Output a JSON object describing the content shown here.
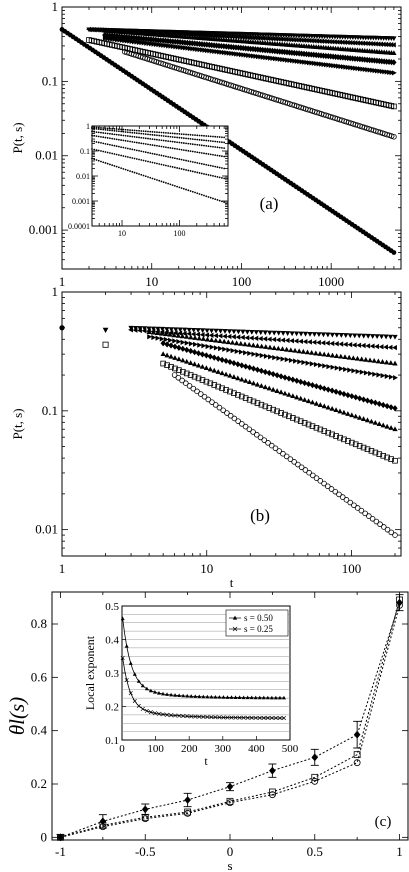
{
  "chart_data": [
    {
      "panel_label": "(a)",
      "type": "scatter",
      "xscale": "log",
      "yscale": "log",
      "xlabel": "t",
      "ylabel": "P(t, s)",
      "xlim": [
        1,
        6000
      ],
      "ylim": [
        0.0003,
        1
      ],
      "xticks": [
        {
          "v": 1,
          "label": "1"
        },
        {
          "v": 10,
          "label": "10"
        },
        {
          "v": 100,
          "label": "100"
        },
        {
          "v": 1000,
          "label": "1000"
        }
      ],
      "yticks": [
        {
          "v": 1,
          "label": "1"
        },
        {
          "v": 0.1,
          "label": "0.1"
        },
        {
          "v": 0.01,
          "label": "0.01"
        },
        {
          "v": 0.001,
          "label": "0.001"
        }
      ],
      "series": [
        {
          "marker": "triangle-down",
          "start": [
            2,
            0.5
          ],
          "end": [
            5000,
            0.38
          ]
        },
        {
          "marker": "triangle-left",
          "start": [
            2,
            0.5
          ],
          "end": [
            5000,
            0.31
          ]
        },
        {
          "marker": "triangle-up",
          "start": [
            3,
            0.48
          ],
          "end": [
            5000,
            0.24
          ]
        },
        {
          "marker": "diamond",
          "start": [
            3,
            0.42
          ],
          "end": [
            5000,
            0.18
          ]
        },
        {
          "marker": "triangle-right",
          "start": [
            3,
            0.38
          ],
          "end": [
            5000,
            0.13
          ]
        },
        {
          "marker": "square",
          "start": [
            2,
            0.36
          ],
          "end": [
            5000,
            0.046
          ]
        },
        {
          "marker": "circle",
          "start": [
            5,
            0.25
          ],
          "end": [
            5000,
            0.018
          ]
        },
        {
          "marker": "dot",
          "start": [
            1,
            0.5
          ],
          "end": [
            5000,
            0.0005
          ]
        }
      ],
      "inset": {
        "xscale": "log",
        "yscale": "log",
        "xlim": [
          3,
          700
        ],
        "ylim": [
          0.0001,
          1
        ],
        "xticks": [
          {
            "v": 10,
            "label": "10"
          },
          {
            "v": 100,
            "label": "100"
          }
        ],
        "yticks": [
          {
            "v": 1,
            "label": "1"
          },
          {
            "v": 0.1,
            "label": "0.1"
          },
          {
            "v": 0.01,
            "label": "0.01"
          },
          {
            "v": 0.001,
            "label": "0.001"
          },
          {
            "v": 0.0001,
            "label": "0.0001"
          }
        ],
        "series": [
          {
            "start": [
              3,
              0.9
            ],
            "end": [
              600,
              0.35
            ]
          },
          {
            "start": [
              3,
              0.8
            ],
            "end": [
              600,
              0.22
            ]
          },
          {
            "start": [
              3,
              0.6
            ],
            "end": [
              600,
              0.13
            ]
          },
          {
            "start": [
              3,
              0.42
            ],
            "end": [
              600,
              0.06
            ]
          },
          {
            "start": [
              3,
              0.25
            ],
            "end": [
              600,
              0.02
            ]
          },
          {
            "start": [
              3,
              0.12
            ],
            "end": [
              600,
              0.008
            ]
          },
          {
            "start": [
              3,
              0.05
            ],
            "end": [
              600,
              0.0009
            ]
          }
        ]
      }
    },
    {
      "panel_label": "(b)",
      "type": "scatter",
      "xscale": "log",
      "yscale": "log",
      "xlabel": "t",
      "ylabel": "P(t, s)",
      "xlim": [
        1,
        220
      ],
      "ylim": [
        0.006,
        1
      ],
      "xticks": [
        {
          "v": 1,
          "label": "1"
        },
        {
          "v": 10,
          "label": "10"
        },
        {
          "v": 100,
          "label": "100"
        }
      ],
      "yticks": [
        {
          "v": 1,
          "label": "1"
        },
        {
          "v": 0.1,
          "label": "0.1"
        },
        {
          "v": 0.01,
          "label": "0.01"
        }
      ],
      "series": [
        {
          "marker": "triangle-down",
          "start": [
            3,
            0.5
          ],
          "end": [
            200,
            0.42
          ]
        },
        {
          "marker": "triangle-left",
          "start": [
            3,
            0.48
          ],
          "end": [
            200,
            0.34
          ]
        },
        {
          "marker": "triangle-up",
          "start": [
            4,
            0.46
          ],
          "end": [
            200,
            0.25
          ]
        },
        {
          "marker": "triangle-right",
          "start": [
            4,
            0.42
          ],
          "end": [
            200,
            0.19
          ]
        },
        {
          "marker": "diamond",
          "start": [
            5,
            0.37
          ],
          "end": [
            200,
            0.105
          ]
        },
        {
          "marker": "triangle-up",
          "start": [
            5,
            0.3
          ],
          "end": [
            200,
            0.07
          ]
        },
        {
          "marker": "square",
          "start": [
            5,
            0.25
          ],
          "end": [
            200,
            0.038
          ]
        },
        {
          "marker": "circle",
          "start": [
            6,
            0.2
          ],
          "end": [
            200,
            0.009
          ]
        },
        {
          "marker": "dot",
          "start": [
            1,
            0.5
          ],
          "end": [
            1,
            0.5
          ]
        },
        {
          "marker": "triangle-down",
          "start": [
            2,
            0.48
          ],
          "end": [
            2,
            0.48
          ]
        },
        {
          "marker": "square",
          "start": [
            2,
            0.36
          ],
          "end": [
            2,
            0.36
          ]
        }
      ]
    },
    {
      "panel_label": "(c)",
      "type": "line",
      "xlabel": "s",
      "ylabel": "θl(s)",
      "xlim": [
        -1.05,
        1.05
      ],
      "ylim": [
        -0.01,
        0.92
      ],
      "xticks": [
        {
          "v": -1,
          "label": "-1"
        },
        {
          "v": -0.5,
          "label": "-0.5"
        },
        {
          "v": 0,
          "label": "0"
        },
        {
          "v": 0.5,
          "label": "0.5"
        },
        {
          "v": 1,
          "label": "1"
        }
      ],
      "yticks": [
        {
          "v": 0,
          "label": "0"
        },
        {
          "v": 0.2,
          "label": "0.2"
        },
        {
          "v": 0.4,
          "label": "0.4"
        },
        {
          "v": 0.6,
          "label": "0.6"
        },
        {
          "v": 0.8,
          "label": "0.8"
        }
      ],
      "x": [
        -1,
        -0.75,
        -0.5,
        -0.25,
        0,
        0.25,
        0.5,
        0.75,
        1
      ],
      "series": [
        {
          "marker": "filled-diamond",
          "values": [
            0.0,
            0.06,
            0.105,
            0.14,
            0.19,
            0.25,
            0.3,
            0.385,
            0.88
          ],
          "err": [
            0.01,
            0.025,
            0.02,
            0.025,
            0.015,
            0.025,
            0.03,
            0.05,
            0.03
          ]
        },
        {
          "marker": "open-circle",
          "values": [
            0.0,
            0.04,
            0.07,
            0.09,
            0.13,
            0.16,
            0.21,
            0.28,
            0.87
          ]
        },
        {
          "marker": "open-square",
          "values": [
            0.0,
            0.045,
            0.075,
            0.095,
            0.135,
            0.17,
            0.225,
            0.31,
            0.89
          ]
        }
      ],
      "inset": {
        "type": "line",
        "xlabel": "t",
        "ylabel": "Local exponent",
        "xlim": [
          0,
          500
        ],
        "ylim": [
          0.1,
          0.5
        ],
        "xticks": [
          {
            "v": 0,
            "label": "0"
          },
          {
            "v": 100,
            "label": "100"
          },
          {
            "v": 200,
            "label": "200"
          },
          {
            "v": 300,
            "label": "300"
          },
          {
            "v": 400,
            "label": "400"
          },
          {
            "v": 500,
            "label": "500"
          }
        ],
        "yticks": [
          {
            "v": 0.1,
            "label": "0.1"
          },
          {
            "v": 0.2,
            "label": "0.2"
          },
          {
            "v": 0.3,
            "label": "0.3"
          },
          {
            "v": 0.4,
            "label": "0.4"
          },
          {
            "v": 0.5,
            "label": "0.5"
          }
        ],
        "legend": [
          "s = 0.50",
          "s = 0.25"
        ],
        "series": [
          {
            "name": "s = 0.50",
            "marker": "triangle",
            "start": 0.45,
            "plateau": 0.225,
            "tau": 25
          },
          {
            "name": "s = 0.25",
            "marker": "cross",
            "start": 0.33,
            "plateau": 0.165,
            "tau": 22
          }
        ]
      }
    }
  ]
}
